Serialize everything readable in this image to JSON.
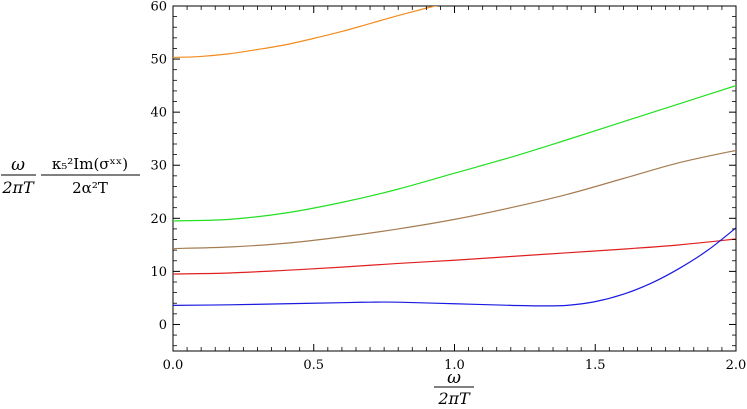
{
  "chart_data": {
    "type": "line",
    "title": "",
    "xlabel": {
      "numerator": "ω",
      "denominator": "2πT"
    },
    "ylabel": {
      "left_fraction": {
        "numerator": "ω",
        "denominator": "2πT"
      },
      "right_fraction": {
        "numerator": "κ₅²Im(σˣˣ)",
        "denominator": "2α²T"
      }
    },
    "xlim": [
      0,
      2
    ],
    "ylim": [
      -5,
      60
    ],
    "xticks": [
      0.0,
      0.5,
      1.0,
      1.5,
      2.0
    ],
    "xtick_labels": [
      "0.0",
      "0.5",
      "1.0",
      "1.5",
      "2.0"
    ],
    "yticks": [
      0,
      10,
      20,
      30,
      40,
      50,
      60
    ],
    "ytick_labels": [
      "0",
      "10",
      "20",
      "30",
      "40",
      "50",
      "60"
    ],
    "grid": false,
    "series": [
      {
        "color": "#f28c1e",
        "x": [
          0,
          0.1,
          0.2,
          0.3,
          0.4,
          0.5,
          0.6,
          0.7,
          0.8,
          0.9,
          0.95
        ],
        "y": [
          50.3,
          50.5,
          51.0,
          51.8,
          52.7,
          53.9,
          55.2,
          56.7,
          58.2,
          59.6,
          60.2
        ]
      },
      {
        "color": "#22e022",
        "x": [
          0,
          0.2,
          0.4,
          0.6,
          0.8,
          1.0,
          1.2,
          1.4,
          1.6,
          1.8,
          2.0
        ],
        "y": [
          19.5,
          19.8,
          21.0,
          23.0,
          25.5,
          28.5,
          31.5,
          34.8,
          38.2,
          41.6,
          45.0
        ]
      },
      {
        "color": "#a67c52",
        "x": [
          0,
          0.2,
          0.4,
          0.6,
          0.8,
          1.0,
          1.2,
          1.4,
          1.6,
          1.8,
          2.0
        ],
        "y": [
          14.3,
          14.6,
          15.3,
          16.5,
          18.0,
          19.8,
          22.0,
          24.5,
          27.5,
          30.5,
          32.8
        ]
      },
      {
        "color": "#e02020",
        "x": [
          0,
          0.2,
          0.4,
          0.6,
          0.8,
          1.0,
          1.2,
          1.4,
          1.6,
          1.8,
          2.0
        ],
        "y": [
          9.5,
          9.7,
          10.2,
          10.8,
          11.5,
          12.1,
          12.8,
          13.5,
          14.2,
          15.0,
          16.1
        ]
      },
      {
        "color": "#1a1ae0",
        "x": [
          0,
          0.2,
          0.4,
          0.6,
          0.7,
          0.8,
          1.0,
          1.2,
          1.3,
          1.4,
          1.5,
          1.6,
          1.7,
          1.8,
          1.9,
          2.0
        ],
        "y": [
          3.6,
          3.7,
          3.9,
          4.1,
          4.2,
          4.2,
          3.9,
          3.6,
          3.5,
          3.6,
          4.3,
          5.7,
          7.8,
          10.6,
          14.0,
          18.2
        ]
      }
    ]
  }
}
